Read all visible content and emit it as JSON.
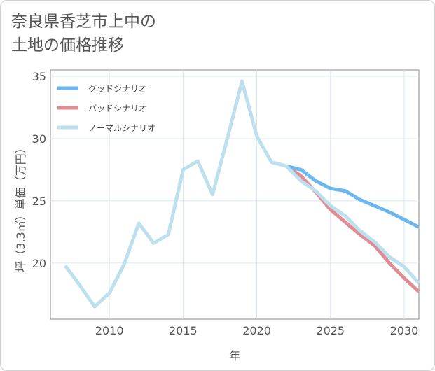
{
  "title_lines": [
    "奈良県香芝市上中の",
    "土地の価格推移"
  ],
  "chart_data": {
    "type": "line",
    "xlabel": "年",
    "ylabel": "坪（3.3㎡）単価（万円）",
    "xlim": [
      2006.0,
      2031.0
    ],
    "ylim": [
      15.5,
      35.5
    ],
    "xticks": [
      2010,
      2015,
      2020,
      2025,
      2030
    ],
    "yticks": [
      20,
      25,
      30,
      35
    ],
    "grid": true,
    "legend_position": "top-left",
    "series": [
      {
        "name": "グッドシナリオ",
        "color": "#6cb7ee",
        "points": [
          [
            2022,
            27.8
          ],
          [
            2023,
            27.5
          ],
          [
            2024,
            26.6
          ],
          [
            2025,
            26.0
          ],
          [
            2026,
            25.8
          ],
          [
            2027,
            25.1
          ],
          [
            2028,
            24.6
          ],
          [
            2029,
            24.1
          ],
          [
            2030,
            23.5
          ],
          [
            2031,
            22.9
          ]
        ]
      },
      {
        "name": "バッドシナリオ",
        "color": "#e08c94",
        "points": [
          [
            2022,
            27.8
          ],
          [
            2023,
            27.0
          ],
          [
            2024,
            25.7
          ],
          [
            2025,
            24.3
          ],
          [
            2026,
            23.3
          ],
          [
            2027,
            22.3
          ],
          [
            2028,
            21.4
          ],
          [
            2029,
            20.0
          ],
          [
            2030,
            18.8
          ],
          [
            2031,
            17.7
          ]
        ]
      },
      {
        "name": "ノーマルシナリオ",
        "color": "#bde0ee",
        "points": [
          [
            2007,
            19.8
          ],
          [
            2008,
            18.2
          ],
          [
            2009,
            16.5
          ],
          [
            2010,
            17.6
          ],
          [
            2011,
            19.9
          ],
          [
            2012,
            23.2
          ],
          [
            2013,
            21.6
          ],
          [
            2014,
            22.3
          ],
          [
            2015,
            27.5
          ],
          [
            2016,
            28.2
          ],
          [
            2017,
            25.5
          ],
          [
            2018,
            30.0
          ],
          [
            2019,
            34.6
          ],
          [
            2020,
            30.2
          ],
          [
            2021,
            28.1
          ],
          [
            2022,
            27.8
          ],
          [
            2023,
            26.6
          ],
          [
            2024,
            25.8
          ],
          [
            2025,
            24.6
          ],
          [
            2026,
            23.8
          ],
          [
            2027,
            22.6
          ],
          [
            2028,
            21.7
          ],
          [
            2029,
            20.5
          ],
          [
            2030,
            19.7
          ],
          [
            2031,
            18.4
          ]
        ]
      }
    ]
  }
}
